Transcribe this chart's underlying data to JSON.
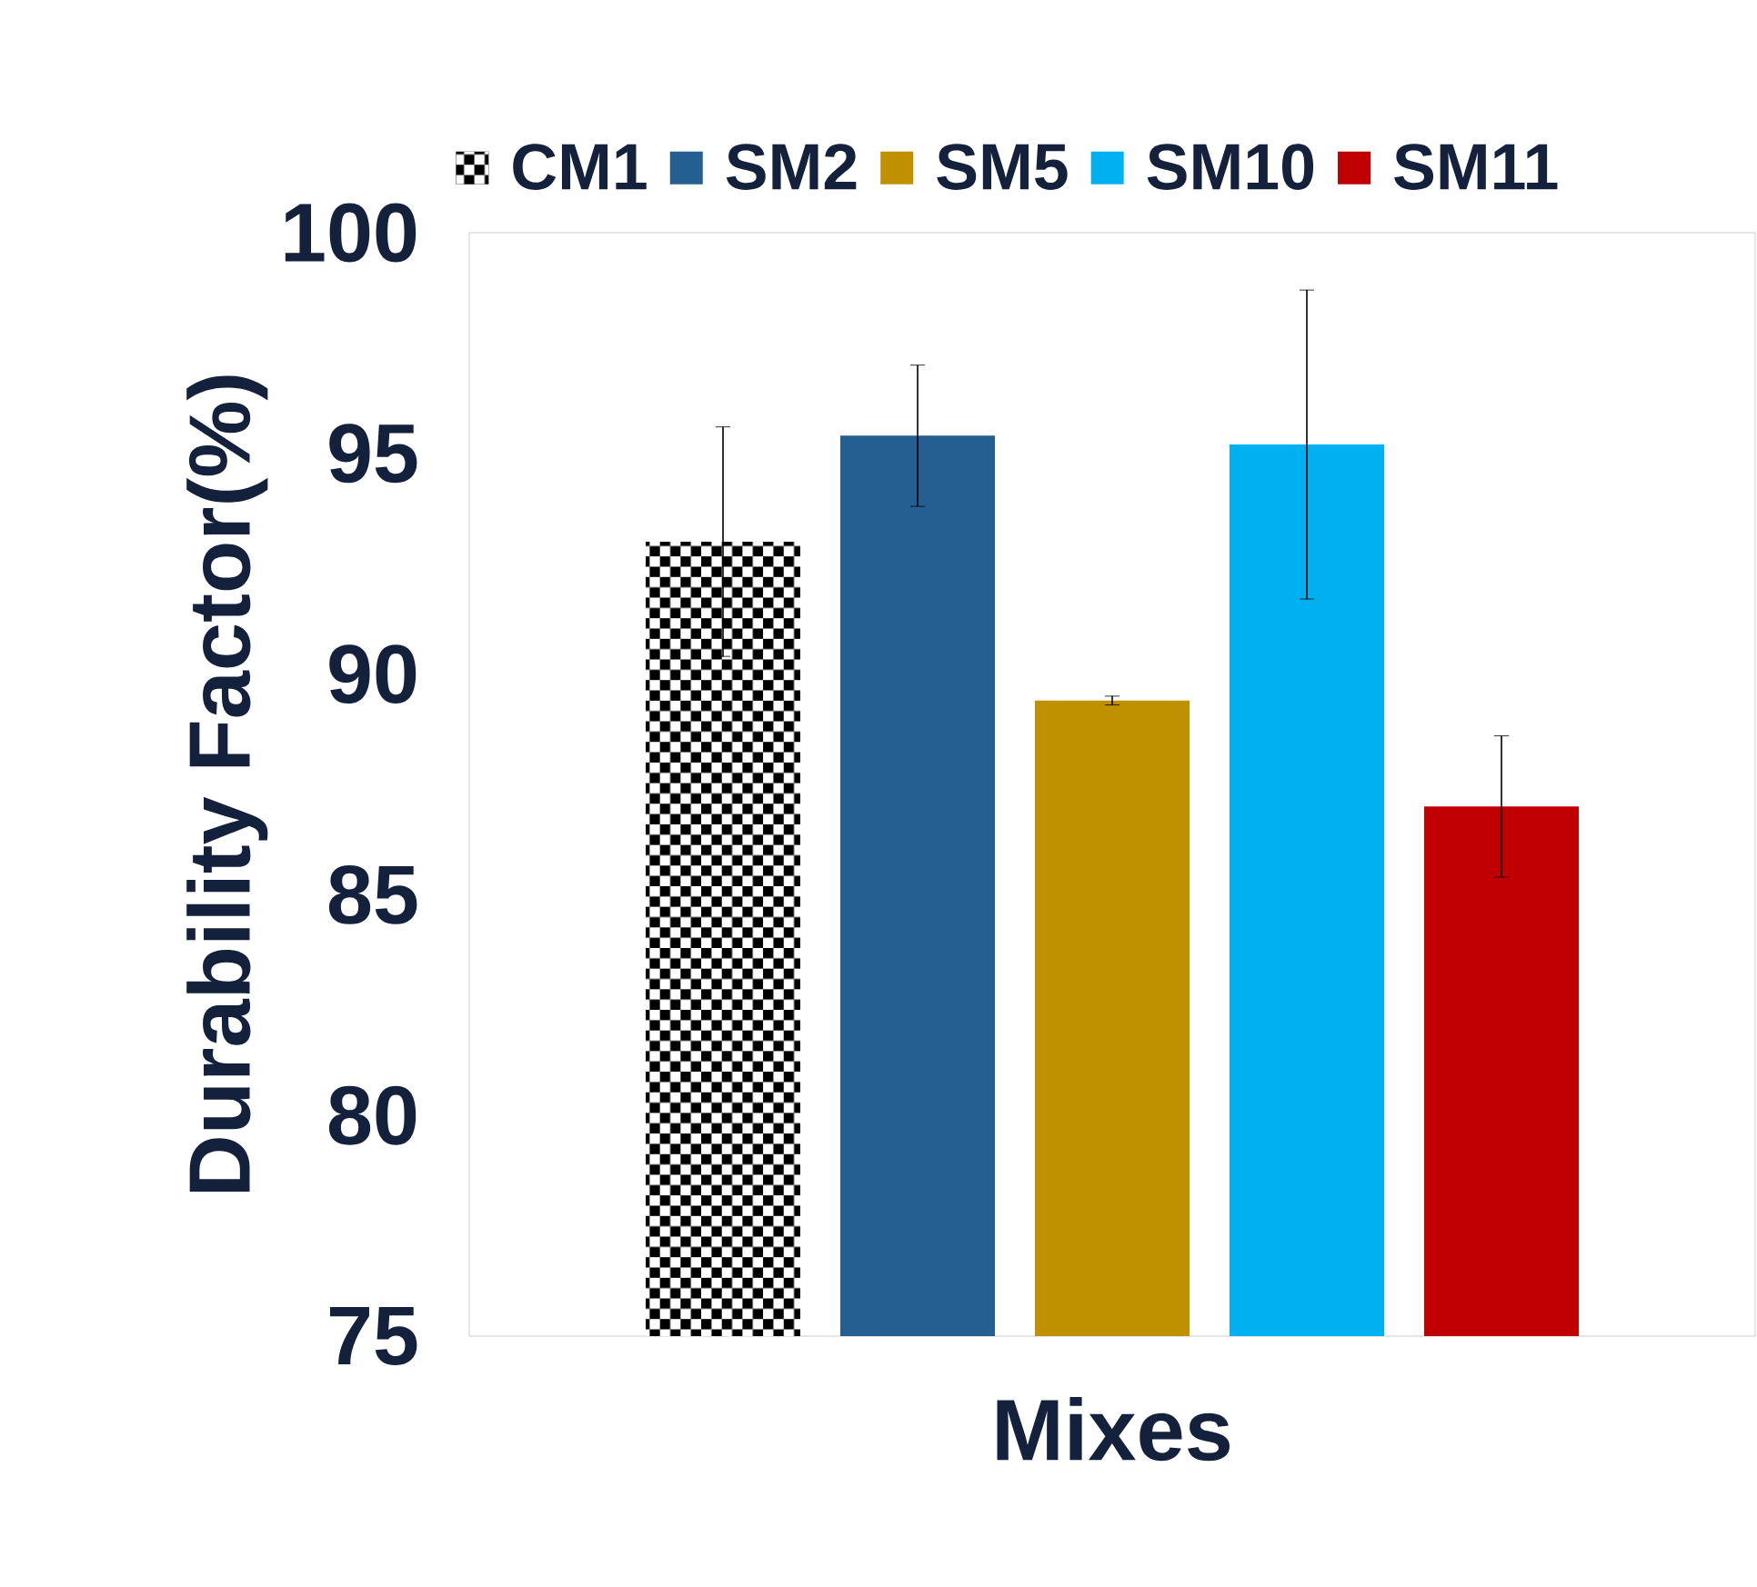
{
  "chart_data": {
    "type": "bar",
    "xlabel": "Mixes",
    "ylabel": "Durability Factor(%)",
    "categories": [
      null
    ],
    "series": [
      {
        "name": "CM1",
        "color": "#000000",
        "values": [
          93.0
        ],
        "errors": [
          2.6
        ]
      },
      {
        "name": "SM2",
        "color": "#255e91",
        "values": [
          95.4
        ],
        "errors": [
          1.6
        ]
      },
      {
        "name": "SM5",
        "color": "#bf9000",
        "values": [
          89.4
        ],
        "errors": [
          0.1
        ]
      },
      {
        "name": "SM10",
        "color": "#00b0f0",
        "values": [
          95.2
        ],
        "errors": [
          3.5
        ]
      },
      {
        "name": "SM11",
        "color": "#c00000",
        "values": [
          87.0
        ],
        "errors": [
          1.6
        ]
      }
    ],
    "ylim": [
      75,
      100
    ],
    "yticks": [
      {
        "value": 75,
        "label": "75"
      },
      {
        "value": 80,
        "label": "80"
      },
      {
        "value": 85,
        "label": "85"
      },
      {
        "value": 90,
        "label": "90"
      },
      {
        "value": 95,
        "label": "95"
      },
      {
        "value": 100,
        "label": "100"
      }
    ],
    "legend": "top",
    "tick_labels": "y"
  }
}
